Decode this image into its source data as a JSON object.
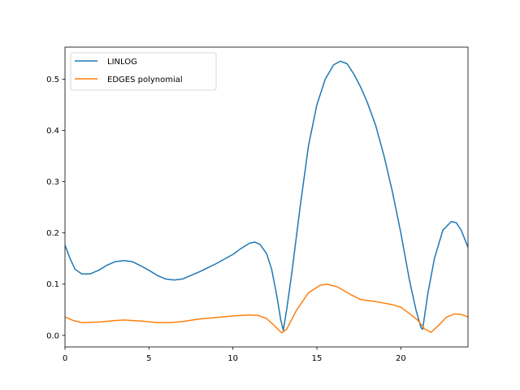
{
  "chart_data": {
    "type": "line",
    "title": "",
    "xlabel": "",
    "ylabel": "",
    "xlim": [
      0,
      24
    ],
    "ylim": [
      -0.0225,
      0.5625
    ],
    "xticks": [
      0,
      5,
      10,
      15,
      20
    ],
    "yticks": [
      0.0,
      0.1,
      0.2,
      0.3,
      0.4,
      0.5
    ],
    "xtick_labels": [
      "0",
      "5",
      "10",
      "15",
      "20"
    ],
    "ytick_labels": [
      "0.0",
      "0.1",
      "0.2",
      "0.3",
      "0.4",
      "0.5"
    ],
    "grid": false,
    "legend_position": "upper-left",
    "series": [
      {
        "name": "LINLOG",
        "color": "#1f77b4",
        "points": [
          [
            0,
            0.176
          ],
          [
            0.3,
            0.15
          ],
          [
            0.6,
            0.129
          ],
          [
            1.0,
            0.12
          ],
          [
            1.5,
            0.12
          ],
          [
            2.0,
            0.127
          ],
          [
            2.5,
            0.137
          ],
          [
            3.0,
            0.144
          ],
          [
            3.5,
            0.146
          ],
          [
            4.0,
            0.144
          ],
          [
            4.5,
            0.136
          ],
          [
            5.0,
            0.127
          ],
          [
            5.5,
            0.117
          ],
          [
            6.0,
            0.11
          ],
          [
            6.5,
            0.108
          ],
          [
            7.0,
            0.11
          ],
          [
            8.0,
            0.124
          ],
          [
            9.0,
            0.14
          ],
          [
            10.0,
            0.158
          ],
          [
            10.5,
            0.17
          ],
          [
            11.0,
            0.18
          ],
          [
            11.3,
            0.182
          ],
          [
            11.6,
            0.178
          ],
          [
            12.0,
            0.16
          ],
          [
            12.3,
            0.13
          ],
          [
            12.6,
            0.08
          ],
          [
            12.85,
            0.03
          ],
          [
            13.0,
            0.01
          ],
          [
            13.2,
            0.05
          ],
          [
            13.5,
            0.12
          ],
          [
            14.0,
            0.25
          ],
          [
            14.5,
            0.37
          ],
          [
            15.0,
            0.45
          ],
          [
            15.5,
            0.5
          ],
          [
            16.0,
            0.528
          ],
          [
            16.4,
            0.535
          ],
          [
            16.8,
            0.53
          ],
          [
            17.2,
            0.51
          ],
          [
            17.6,
            0.485
          ],
          [
            18.0,
            0.455
          ],
          [
            18.5,
            0.41
          ],
          [
            19.0,
            0.35
          ],
          [
            19.5,
            0.28
          ],
          [
            20.0,
            0.2
          ],
          [
            20.5,
            0.11
          ],
          [
            20.9,
            0.05
          ],
          [
            21.2,
            0.015
          ],
          [
            21.3,
            0.012
          ],
          [
            21.6,
            0.08
          ],
          [
            22.0,
            0.15
          ],
          [
            22.5,
            0.205
          ],
          [
            23.0,
            0.222
          ],
          [
            23.3,
            0.22
          ],
          [
            23.6,
            0.205
          ],
          [
            24.0,
            0.172
          ]
        ]
      },
      {
        "name": "EDGES polynomial",
        "color": "#ff7f0e",
        "points": [
          [
            0,
            0.036
          ],
          [
            0.5,
            0.029
          ],
          [
            1.0,
            0.025
          ],
          [
            2.0,
            0.026
          ],
          [
            3.0,
            0.029
          ],
          [
            3.5,
            0.03
          ],
          [
            4.5,
            0.028
          ],
          [
            5.5,
            0.025
          ],
          [
            6.3,
            0.025
          ],
          [
            7.0,
            0.027
          ],
          [
            8.0,
            0.032
          ],
          [
            9.0,
            0.035
          ],
          [
            10.0,
            0.038
          ],
          [
            11.0,
            0.04
          ],
          [
            11.5,
            0.039
          ],
          [
            12.0,
            0.033
          ],
          [
            12.5,
            0.018
          ],
          [
            12.9,
            0.005
          ],
          [
            13.2,
            0.012
          ],
          [
            13.8,
            0.05
          ],
          [
            14.5,
            0.083
          ],
          [
            15.2,
            0.098
          ],
          [
            15.6,
            0.1
          ],
          [
            16.2,
            0.095
          ],
          [
            17.0,
            0.08
          ],
          [
            17.6,
            0.07
          ],
          [
            18.5,
            0.066
          ],
          [
            19.5,
            0.06
          ],
          [
            20.0,
            0.055
          ],
          [
            20.5,
            0.043
          ],
          [
            21.0,
            0.03
          ],
          [
            21.4,
            0.013
          ],
          [
            21.8,
            0.006
          ],
          [
            22.2,
            0.018
          ],
          [
            22.7,
            0.035
          ],
          [
            23.2,
            0.042
          ],
          [
            23.6,
            0.041
          ],
          [
            24.0,
            0.036
          ]
        ]
      }
    ]
  }
}
